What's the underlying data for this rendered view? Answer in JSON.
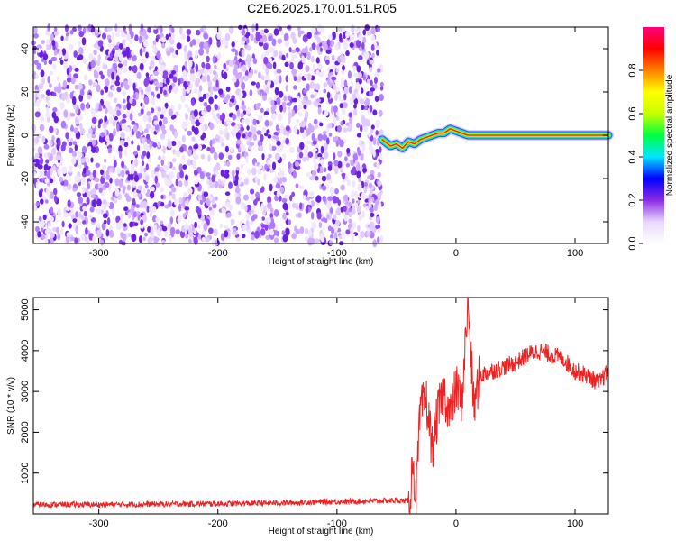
{
  "figure": {
    "title": "C2E6.2025.170.01.51.R05"
  },
  "chart_data": [
    {
      "type": "heatmap",
      "xlabel": "Height of straight line (km)",
      "ylabel": "Frequency (Hz)",
      "xlim": [
        -355,
        128
      ],
      "ylim": [
        -50,
        50
      ],
      "xticks": [
        -300,
        -200,
        -100,
        0,
        100
      ],
      "yticks": [
        -40,
        -20,
        0,
        20,
        40
      ],
      "noise_region_x": [
        -355,
        -62
      ],
      "signal_start_x": -62,
      "ridge": {
        "x": [
          -62,
          -55,
          -50,
          -45,
          -40,
          -35,
          -30,
          -25,
          -20,
          -15,
          -10,
          -5,
          0,
          5,
          10,
          20,
          40,
          60,
          80,
          100,
          128
        ],
        "freq": [
          -2,
          -5,
          -4,
          -6,
          -3,
          -4,
          -2,
          -1,
          0,
          1,
          1,
          3,
          2,
          1,
          0,
          0,
          0,
          0,
          0,
          0,
          0
        ]
      },
      "colorbar": {
        "label": "Normalized spectral amplitude",
        "range": [
          0,
          1
        ],
        "ticks": [
          "0.0",
          "0.2",
          "0.4",
          "0.6",
          "0.8"
        ],
        "colors": [
          "#ffffff",
          "#e8d8ff",
          "#8a2be2",
          "#0000ff",
          "#00e5ff",
          "#00ff40",
          "#c8ff00",
          "#ffff00",
          "#ff8000",
          "#ff0000",
          "#ff007f"
        ]
      },
      "grid": false
    },
    {
      "type": "line",
      "xlabel": "Height of straight line (km)",
      "ylabel": "SNR (10 * v/v)",
      "xlim": [
        -355,
        128
      ],
      "ylim": [
        0,
        5300
      ],
      "xticks": [
        -300,
        -200,
        -100,
        0,
        100
      ],
      "yticks": [
        1000,
        2000,
        3000,
        4000,
        5000
      ],
      "series": [
        {
          "color": "#ee2222",
          "x": [
            -355,
            -300,
            -250,
            -200,
            -150,
            -100,
            -70,
            -50,
            -40,
            -38,
            -36,
            -34,
            -30,
            -25,
            -20,
            -15,
            -10,
            -5,
            0,
            5,
            10,
            15,
            20,
            30,
            40,
            50,
            60,
            70,
            80,
            90,
            100,
            110,
            120,
            128
          ],
          "values": [
            230,
            230,
            240,
            250,
            270,
            300,
            320,
            330,
            320,
            600,
            1500,
            200,
            2500,
            2800,
            1600,
            2500,
            3000,
            2400,
            3100,
            2800,
            5200,
            2600,
            3400,
            3500,
            3600,
            3700,
            3900,
            4000,
            3900,
            3800,
            3500,
            3400,
            3200,
            3500
          ]
        }
      ],
      "grid": false
    }
  ]
}
